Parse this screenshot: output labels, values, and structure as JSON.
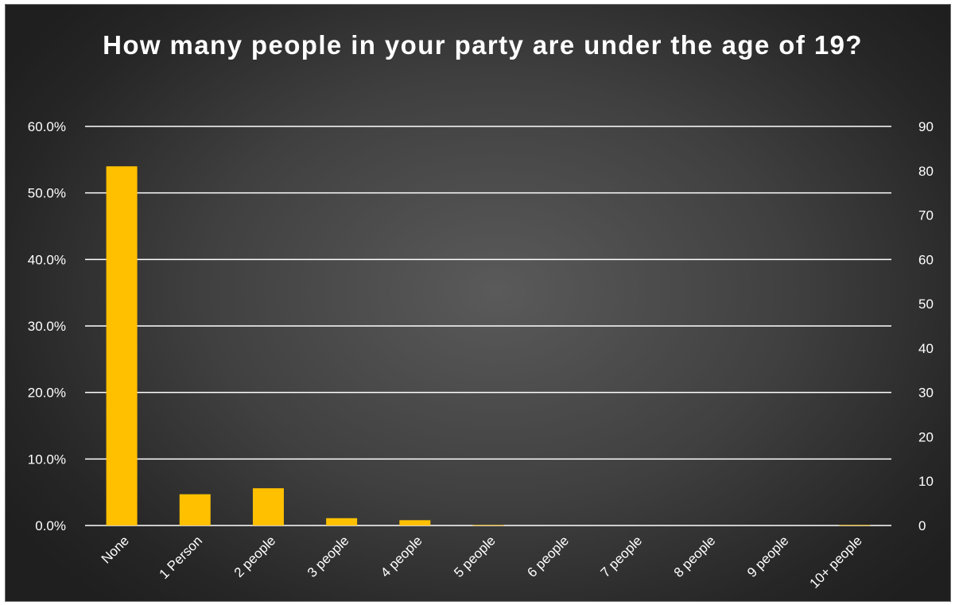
{
  "chart_data": {
    "type": "bar",
    "title": "How many people in your party are under the age of 19?",
    "categories": [
      "None",
      "1 Person",
      "2 people",
      "3 people",
      "4 people",
      "5 people",
      "6 people",
      "7 people",
      "8 people",
      "9 people",
      "10+ people"
    ],
    "series": [
      {
        "values": [
          0.54,
          0.047,
          0.056,
          0.011,
          0.008,
          0.0007,
          0,
          0,
          0,
          0,
          0.0007
        ]
      }
    ],
    "y_left": {
      "range": [
        0,
        0.6
      ],
      "ticks": [
        "0.0%",
        "10.0%",
        "20.0%",
        "30.0%",
        "40.0%",
        "50.0%",
        "60.0%"
      ]
    },
    "y_right": {
      "range": [
        0,
        90
      ],
      "ticks": [
        "0",
        "10",
        "20",
        "30",
        "40",
        "50",
        "60",
        "70",
        "80",
        "90"
      ]
    },
    "grid": true,
    "legend": "none",
    "colors": {
      "bar": "#FFC000",
      "gridline": "#ffffff",
      "text": "#ffffff",
      "background": "#3f3f3f"
    }
  }
}
